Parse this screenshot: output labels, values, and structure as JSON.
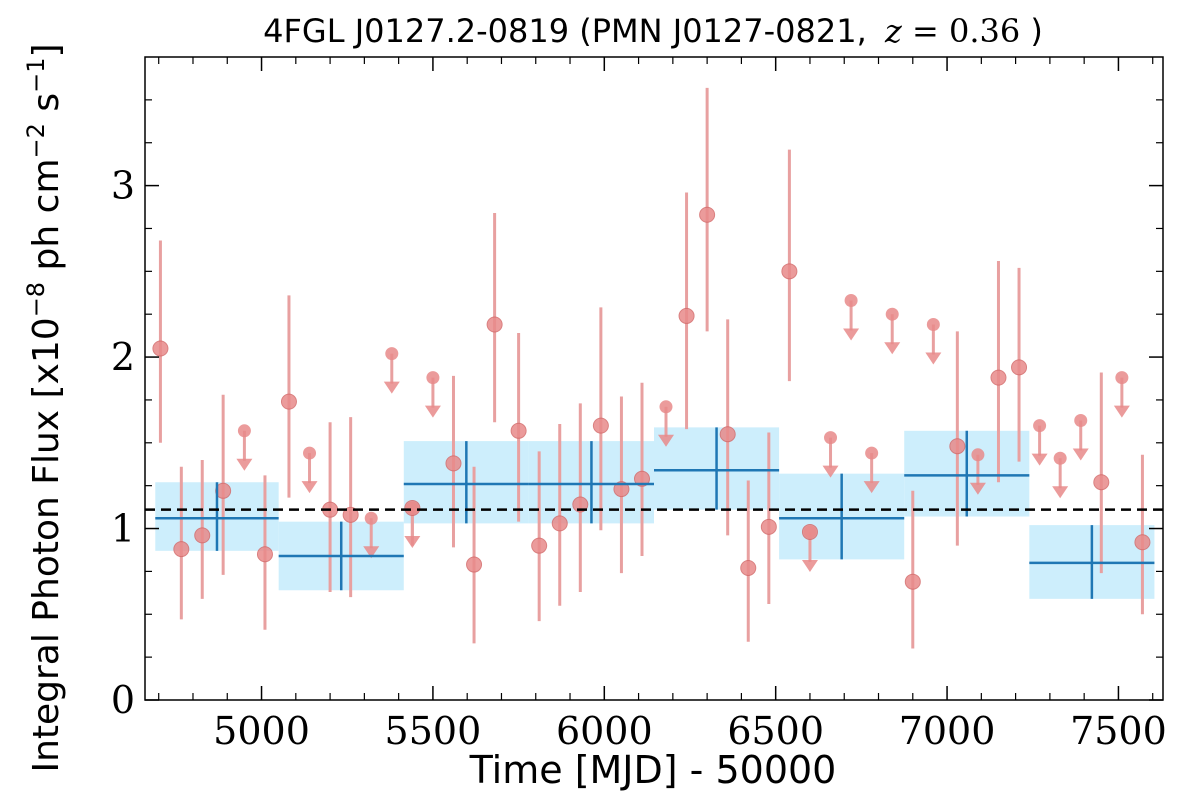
{
  "chart_data": {
    "type": "scatter",
    "title": {
      "prefix": "4FGL J0127.2-0819 (PMN J0127-0821,",
      "z_var": "z",
      "z_eq": " = ",
      "z_val": "0.36",
      "suffix": ")"
    },
    "xlabel": "Time [MJD] - 50000",
    "ylabel": {
      "main": "Integral Photon Flux [x10",
      "exp1": "−8",
      "mid": " ph cm",
      "exp2": "−2",
      "mid2": " s",
      "exp3": "−1",
      "end": "]"
    },
    "xlim": [
      4660,
      7630
    ],
    "ylim": [
      0,
      3.75
    ],
    "x_ticks": [
      5000,
      5500,
      6000,
      6500,
      7000,
      7500
    ],
    "x_tick_labels": [
      "5000",
      "5500",
      "6000",
      "6500",
      "7000",
      "7500"
    ],
    "y_ticks": [
      0,
      1,
      2,
      3
    ],
    "y_tick_labels": [
      "0",
      "1",
      "2",
      "3"
    ],
    "reference_level": 1.11,
    "colors": {
      "points": "#e88a8a",
      "point_edge": "#d46a6a",
      "error_bars": "#e8a0a0",
      "bins": "#1f77b4",
      "bin_band": "#cdeefc",
      "reference": "#000000"
    },
    "series": [
      {
        "type": "points",
        "detections": [
          {
            "x": 4705,
            "y": 2.05,
            "lo": 1.5,
            "hi": 2.68
          },
          {
            "x": 4766,
            "y": 0.88,
            "lo": 0.47,
            "hi": 1.36
          },
          {
            "x": 4827,
            "y": 0.96,
            "lo": 0.59,
            "hi": 1.4
          },
          {
            "x": 4888,
            "y": 1.22,
            "lo": 0.73,
            "hi": 1.78
          },
          {
            "x": 5010,
            "y": 0.85,
            "lo": 0.41,
            "hi": 1.31
          },
          {
            "x": 5080,
            "y": 1.74,
            "lo": 1.18,
            "hi": 2.36
          },
          {
            "x": 5200,
            "y": 1.11,
            "lo": 0.63,
            "hi": 1.62
          },
          {
            "x": 5260,
            "y": 1.08,
            "lo": 0.6,
            "hi": 1.65
          },
          {
            "x": 5440,
            "y": 1.12,
            "lo": 0.9,
            "hi": 1.12
          },
          {
            "x": 5560,
            "y": 1.38,
            "lo": 0.89,
            "hi": 1.89
          },
          {
            "x": 5620,
            "y": 0.79,
            "lo": 0.33,
            "hi": 1.36
          },
          {
            "x": 5680,
            "y": 2.19,
            "lo": 1.62,
            "hi": 2.84
          },
          {
            "x": 5750,
            "y": 1.57,
            "lo": 1.04,
            "hi": 2.14
          },
          {
            "x": 5810,
            "y": 0.9,
            "lo": 0.46,
            "hi": 1.45
          },
          {
            "x": 5870,
            "y": 1.03,
            "lo": 0.55,
            "hi": 1.61
          },
          {
            "x": 5930,
            "y": 1.14,
            "lo": 0.63,
            "hi": 1.73
          },
          {
            "x": 5990,
            "y": 1.6,
            "lo": 0.99,
            "hi": 2.29
          },
          {
            "x": 6050,
            "y": 1.23,
            "lo": 0.74,
            "hi": 1.77
          },
          {
            "x": 6110,
            "y": 1.29,
            "lo": 0.84,
            "hi": 1.85
          },
          {
            "x": 6240,
            "y": 2.24,
            "lo": 1.58,
            "hi": 2.96
          },
          {
            "x": 6300,
            "y": 2.83,
            "lo": 2.15,
            "hi": 3.57
          },
          {
            "x": 6360,
            "y": 1.55,
            "lo": 0.96,
            "hi": 2.22
          },
          {
            "x": 6420,
            "y": 0.77,
            "lo": 0.34,
            "hi": 1.28
          },
          {
            "x": 6480,
            "y": 1.01,
            "lo": 0.56,
            "hi": 1.56
          },
          {
            "x": 6540,
            "y": 2.5,
            "lo": 1.86,
            "hi": 3.21
          },
          {
            "x": 6600,
            "y": 0.98,
            "lo": 0.98,
            "hi": 0.98
          },
          {
            "x": 6900,
            "y": 0.69,
            "lo": 0.3,
            "hi": 1.22
          },
          {
            "x": 7030,
            "y": 1.48,
            "lo": 0.9,
            "hi": 2.15
          },
          {
            "x": 7150,
            "y": 1.88,
            "lo": 1.27,
            "hi": 2.56
          },
          {
            "x": 7210,
            "y": 1.94,
            "lo": 1.39,
            "hi": 2.52
          },
          {
            "x": 7450,
            "y": 1.27,
            "lo": 0.74,
            "hi": 1.91
          },
          {
            "x": 7570,
            "y": 0.92,
            "lo": 0.5,
            "hi": 1.43
          }
        ],
        "upper_limits": [
          {
            "x": 4950,
            "y": 1.57
          },
          {
            "x": 5140,
            "y": 1.44
          },
          {
            "x": 5320,
            "y": 1.06
          },
          {
            "x": 5380,
            "y": 2.02
          },
          {
            "x": 5440,
            "y": 1.12
          },
          {
            "x": 5500,
            "y": 1.88
          },
          {
            "x": 6180,
            "y": 1.71
          },
          {
            "x": 6600,
            "y": 0.98
          },
          {
            "x": 6660,
            "y": 1.53
          },
          {
            "x": 6720,
            "y": 2.33
          },
          {
            "x": 6780,
            "y": 1.44
          },
          {
            "x": 6840,
            "y": 2.25
          },
          {
            "x": 6960,
            "y": 2.19
          },
          {
            "x": 7090,
            "y": 1.43
          },
          {
            "x": 7270,
            "y": 1.6
          },
          {
            "x": 7330,
            "y": 1.41
          },
          {
            "x": 7390,
            "y": 1.63
          },
          {
            "x": 7510,
            "y": 1.88
          }
        ]
      },
      {
        "type": "bins",
        "bins": [
          {
            "x0": 4690,
            "x1": 5050,
            "y": 1.06,
            "lo": 0.87,
            "hi": 1.27
          },
          {
            "x0": 5050,
            "x1": 5415,
            "y": 0.84,
            "lo": 0.64,
            "hi": 1.04
          },
          {
            "x0": 5415,
            "x1": 5780,
            "y": 1.26,
            "lo": 1.03,
            "hi": 1.51
          },
          {
            "x0": 5780,
            "x1": 6145,
            "y": 1.26,
            "lo": 1.03,
            "hi": 1.51
          },
          {
            "x0": 6145,
            "x1": 6510,
            "y": 1.34,
            "lo": 1.11,
            "hi": 1.59
          },
          {
            "x0": 6510,
            "x1": 6875,
            "y": 1.06,
            "lo": 0.82,
            "hi": 1.32
          },
          {
            "x0": 6875,
            "x1": 7240,
            "y": 1.31,
            "lo": 1.07,
            "hi": 1.57
          },
          {
            "x0": 7240,
            "x1": 7605,
            "y": 0.8,
            "lo": 0.59,
            "hi": 1.02
          }
        ]
      }
    ]
  }
}
